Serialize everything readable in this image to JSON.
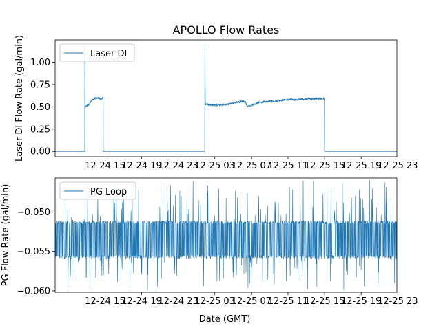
{
  "chart_data": [
    {
      "type": "line",
      "title": "APOLLO Flow Rates",
      "xlabel": "",
      "ylabel": "Laser DI Flow Rate (gal/min)",
      "legend": {
        "label": "Laser DI",
        "position": "upper-left"
      },
      "x_unit": "hours since 12-24 00:00 GMT",
      "xlim": [
        9.55,
        46.9
      ],
      "ylim": [
        -0.06,
        1.25
      ],
      "x_ticks": [
        15,
        19,
        23,
        27,
        31,
        35,
        39,
        43,
        47
      ],
      "x_tick_labels": [
        "12-24 15",
        "12-24 19",
        "12-24 23",
        "12-25 03",
        "12-25 07",
        "12-25 11",
        "12-25 15",
        "12-25 19",
        "12-25 23"
      ],
      "y_ticks": [
        0.0,
        0.25,
        0.5,
        0.75,
        1.0
      ],
      "y_tick_labels": [
        "0.00",
        "0.25",
        "0.50",
        "0.75",
        "1.00"
      ],
      "color": "#1f77b4",
      "series": [
        {
          "name": "Laser DI",
          "x": [
            9.55,
            12.79,
            12.8,
            12.84,
            12.9,
            13.2,
            13.6,
            13.8,
            14.2,
            14.6,
            14.8,
            14.81,
            25.9,
            25.92,
            25.96,
            26.5,
            27.5,
            28.5,
            29.5,
            30.3,
            30.6,
            31.0,
            31.4,
            32.0,
            33.0,
            34.0,
            35.0,
            36.0,
            37.0,
            38.0,
            38.98,
            39.0,
            46.9
          ],
          "y": [
            0.0,
            0.0,
            1.19,
            0.5,
            0.5,
            0.52,
            0.58,
            0.59,
            0.6,
            0.59,
            0.6,
            0.0,
            0.0,
            1.19,
            0.53,
            0.52,
            0.52,
            0.53,
            0.55,
            0.56,
            0.5,
            0.52,
            0.53,
            0.55,
            0.56,
            0.57,
            0.58,
            0.58,
            0.59,
            0.59,
            0.59,
            0.0,
            0.0
          ],
          "noise": 0.012
        }
      ]
    },
    {
      "type": "line",
      "title": "",
      "xlabel": "Date (GMT)",
      "ylabel": "PG Flow Rate (gal/min)",
      "legend": {
        "label": "PG Loop",
        "position": "upper-left"
      },
      "x_unit": "hours since 12-24 00:00 GMT",
      "xlim": [
        9.55,
        46.9
      ],
      "ylim": [
        -0.06018,
        -0.04568
      ],
      "x_ticks": [
        15,
        19,
        23,
        27,
        31,
        35,
        39,
        43,
        47
      ],
      "x_tick_labels": [
        "12-24 15",
        "12-24 19",
        "12-24 23",
        "12-25 03",
        "12-25 07",
        "12-25 11",
        "12-25 15",
        "12-25 19",
        "12-25 23"
      ],
      "y_ticks": [
        -0.05,
        -0.055,
        -0.06
      ],
      "y_tick_labels": [
        "−0.050",
        "−0.055",
        "−0.060"
      ],
      "color": "#1f77b4",
      "series": [
        {
          "name": "PG Loop",
          "x_range": [
            9.55,
            46.9
          ],
          "band": [
            -0.0559,
            -0.0511
          ],
          "y_extremes": [
            -0.06,
            -0.0459
          ],
          "sample_count": 1500
        }
      ]
    }
  ]
}
